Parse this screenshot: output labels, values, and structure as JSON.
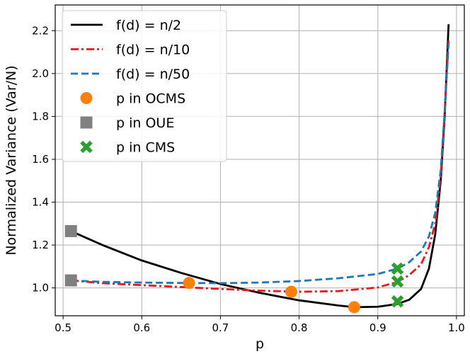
{
  "chart_data": {
    "type": "line",
    "title": "",
    "xlabel": "p",
    "ylabel": "Normalized Variance (Var/N)",
    "xlim": [
      0.49,
      1.01
    ],
    "ylim": [
      0.87,
      2.32
    ],
    "grid": true,
    "legend_position": "top-left",
    "x_ticks": [
      0.5,
      0.6,
      0.7,
      0.8,
      0.9,
      1.0
    ],
    "x_tick_labels": [
      "0.5",
      "0.6",
      "0.7",
      "0.8",
      "0.9",
      "1.0"
    ],
    "y_ticks": [
      1.0,
      1.2,
      1.4,
      1.6,
      1.8,
      2.0,
      2.2
    ],
    "y_tick_labels": [
      "1.0",
      "1.2",
      "1.4",
      "1.6",
      "1.8",
      "2.0",
      "2.2"
    ],
    "series": [
      {
        "name": "f(d) = n/2",
        "style": "solid",
        "color": "#000000",
        "points": [
          [
            0.51,
            1.265
          ],
          [
            0.55,
            1.2
          ],
          [
            0.6,
            1.128
          ],
          [
            0.65,
            1.07
          ],
          [
            0.7,
            1.018
          ],
          [
            0.75,
            0.977
          ],
          [
            0.8,
            0.942
          ],
          [
            0.85,
            0.918
          ],
          [
            0.87,
            0.91
          ],
          [
            0.9,
            0.912
          ],
          [
            0.925,
            0.925
          ],
          [
            0.94,
            0.945
          ],
          [
            0.955,
            0.995
          ],
          [
            0.965,
            1.09
          ],
          [
            0.973,
            1.25
          ],
          [
            0.98,
            1.5
          ],
          [
            0.985,
            1.8
          ],
          [
            0.99,
            2.23
          ]
        ]
      },
      {
        "name": "f(d) = n/10",
        "style": "dashdot",
        "color": "#e8161e",
        "points": [
          [
            0.51,
            1.035
          ],
          [
            0.55,
            1.022
          ],
          [
            0.6,
            1.013
          ],
          [
            0.65,
            1.004
          ],
          [
            0.7,
            0.995
          ],
          [
            0.75,
            0.987
          ],
          [
            0.8,
            0.982
          ],
          [
            0.85,
            0.985
          ],
          [
            0.9,
            1.002
          ],
          [
            0.925,
            1.028
          ],
          [
            0.94,
            1.06
          ],
          [
            0.955,
            1.11
          ],
          [
            0.965,
            1.19
          ],
          [
            0.973,
            1.3
          ],
          [
            0.98,
            1.52
          ],
          [
            0.985,
            1.82
          ],
          [
            0.99,
            2.16
          ]
        ]
      },
      {
        "name": "f(d) = n/50",
        "style": "dashed",
        "color": "#1f77b4",
        "points": [
          [
            0.51,
            1.035
          ],
          [
            0.55,
            1.028
          ],
          [
            0.6,
            1.025
          ],
          [
            0.65,
            1.023
          ],
          [
            0.7,
            1.022
          ],
          [
            0.75,
            1.025
          ],
          [
            0.8,
            1.032
          ],
          [
            0.85,
            1.045
          ],
          [
            0.9,
            1.065
          ],
          [
            0.925,
            1.09
          ],
          [
            0.94,
            1.12
          ],
          [
            0.955,
            1.17
          ],
          [
            0.965,
            1.24
          ],
          [
            0.973,
            1.35
          ],
          [
            0.98,
            1.55
          ],
          [
            0.985,
            1.82
          ],
          [
            0.99,
            2.14
          ]
        ]
      }
    ],
    "markers": [
      {
        "name": "p in OCMS",
        "shape": "circle",
        "color": "#ff7f0e",
        "points": [
          [
            0.66,
            1.023
          ],
          [
            0.79,
            0.982
          ],
          [
            0.87,
            0.91
          ]
        ]
      },
      {
        "name": "p in OUE",
        "shape": "square",
        "color": "#808080",
        "points": [
          [
            0.51,
            1.265
          ],
          [
            0.51,
            1.035
          ]
        ]
      },
      {
        "name": "p in CMS",
        "shape": "x",
        "color": "#2ca02c",
        "points": [
          [
            0.925,
            0.937
          ],
          [
            0.925,
            1.03
          ],
          [
            0.925,
            1.09
          ]
        ]
      }
    ]
  }
}
